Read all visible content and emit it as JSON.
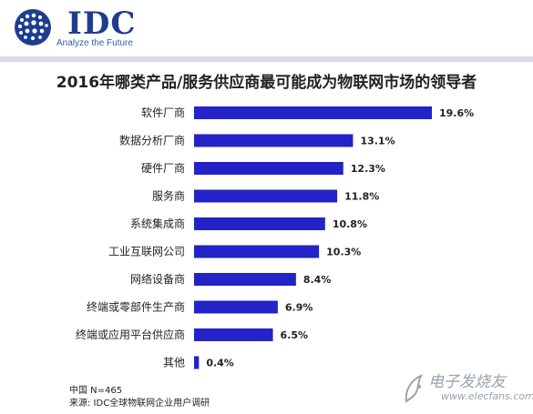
{
  "header": {
    "logo_text": "IDC",
    "logo_tagline": "Analyze the Future"
  },
  "colors": {
    "bar": "#2323c8",
    "brand": "#1f3d8f"
  },
  "chart_data": {
    "type": "bar",
    "orientation": "horizontal",
    "title": "2016年哪类产品/服务供应商最可能成为物联网市场的领导者",
    "categories": [
      "软件厂商",
      "数据分析厂商",
      "硬件厂商",
      "服务商",
      "系统集成商",
      "工业互联网公司",
      "网络设备商",
      "终端或零部件生产商",
      "终端或应用平台供应商",
      "其他"
    ],
    "values": [
      19.6,
      13.1,
      12.3,
      11.8,
      10.8,
      10.3,
      8.4,
      6.9,
      6.5,
      0.4
    ],
    "value_labels": [
      "19.6%",
      "13.1%",
      "12.3%",
      "11.8%",
      "10.8%",
      "10.3%",
      "8.4%",
      "6.9%",
      "6.5%",
      "0.4%"
    ],
    "xlim": [
      0,
      19.6
    ],
    "grid": false,
    "legend": "none"
  },
  "footnotes": {
    "sample": "中国 N=465",
    "source": "来源: IDC全球物联网企业用户调研"
  },
  "watermark": {
    "text": "电子发烧友",
    "url": "www.elecfans.com"
  }
}
